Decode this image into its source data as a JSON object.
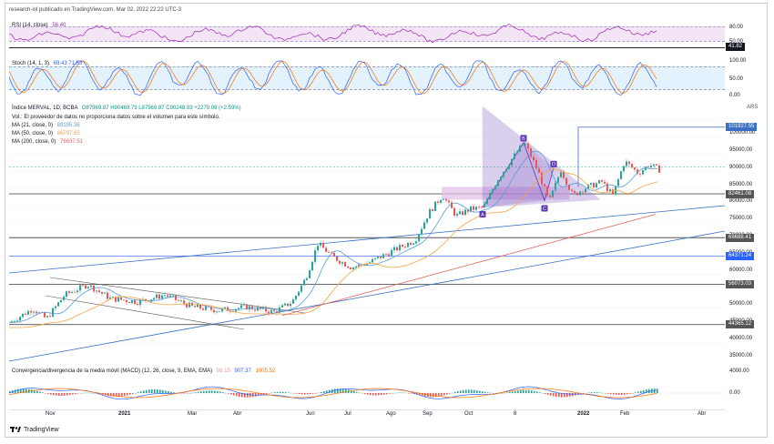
{
  "header": {
    "published_by": "research-iol publicado en TradingView.com, Mar 02, 2022 22:22 UTC-3"
  },
  "rsi": {
    "label": "RSI (14, close)",
    "value": "56.40",
    "levels": [
      "80.00",
      "50.00"
    ],
    "current_box": "41.82"
  },
  "stoch": {
    "label": "Stoch (14, 1, 3)",
    "values": "69.43  71.63",
    "levels": [
      "100.00",
      "50.00",
      "0.00"
    ]
  },
  "main": {
    "symbol_line": "Índice MERVAL, 1D, BCBA",
    "ohlc": "O87969.87  H90469.79  L87969.87  C90248.93  +2279.06 (+2.59%)",
    "vol_note": "Vol.: El proveedor de datos no proporciona datos sobre el volumen para este símbolo.",
    "ma21": {
      "label": "MA (21, close, 0)",
      "value": "89195.36"
    },
    "ma50": {
      "label": "MA (50, close, 0)",
      "value": "86797.65"
    },
    "ma200": {
      "label": "MA (200, close, 0)",
      "value": "76637.51"
    },
    "currency": "ARS",
    "scale_labels": [
      "100000.00",
      "95000.00",
      "90000.00",
      "85000.00",
      "80000.00",
      "75000.00",
      "70000.00",
      "65000.00",
      "60000.00",
      "55000.00",
      "50000.00",
      "45000.00",
      "40000.00",
      "35000.00"
    ],
    "price_boxes": [
      "101927.55",
      "82461.08",
      "69688.41",
      "64371.24",
      "56073.03",
      "44365.12"
    ],
    "pattern_points": [
      "A",
      "B",
      "C",
      "D"
    ]
  },
  "macd": {
    "label": "Convergencia/divergencia de la media móvil (MACD) (12, 26, close, 9, EMA, EMA)",
    "v1": "98.15",
    "v2": "907.37",
    "v3": "1005.52",
    "scale": [
      "4000.00",
      "0.00"
    ]
  },
  "time_axis": [
    "Nov",
    "2021",
    "Mar",
    "Abr",
    "Jun",
    "Jul",
    "Ago",
    "Sep",
    "Oct",
    "8",
    "2022",
    "Feb",
    "Abr"
  ],
  "footer": {
    "brand": "TradingView"
  },
  "colors": {
    "rsi": "#9c27b0",
    "stoch_k": "#2962ff",
    "stoch_d": "#ff6d00",
    "up": "#26a69a",
    "down": "#ef5350",
    "ma21": "#5b9bd5",
    "ma50": "#f7a441",
    "ma200": "#e0625c",
    "trend": "#3a6fc4",
    "harmonic": "#7e57c2"
  }
}
